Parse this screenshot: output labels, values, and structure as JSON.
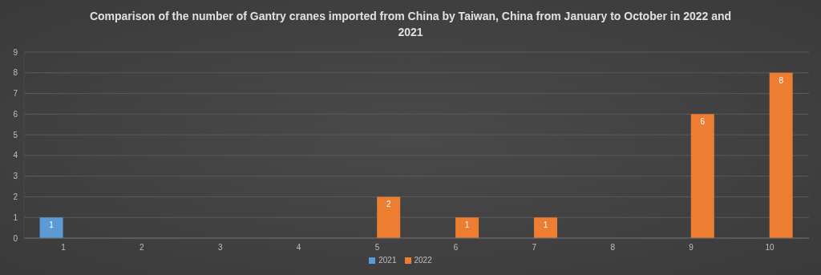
{
  "chart_data": {
    "type": "bar",
    "title": "Comparison of the number of Gantry cranes imported from China by Taiwan, China from January to October in 2022 and 2021",
    "categories": [
      "1",
      "2",
      "3",
      "4",
      "5",
      "6",
      "7",
      "8",
      "9",
      "10"
    ],
    "series": [
      {
        "name": "2021",
        "color": "#5b9bd5",
        "values": [
          1,
          null,
          null,
          null,
          null,
          null,
          null,
          null,
          null,
          null
        ]
      },
      {
        "name": "2022",
        "color": "#ed7d31",
        "values": [
          null,
          null,
          null,
          null,
          2,
          1,
          1,
          null,
          6,
          8
        ]
      }
    ],
    "ylim": [
      0,
      9
    ],
    "yticks": [
      0,
      1,
      2,
      3,
      4,
      5,
      6,
      7,
      8,
      9
    ],
    "grid": true,
    "legend": "bottom",
    "data_labels": true
  }
}
